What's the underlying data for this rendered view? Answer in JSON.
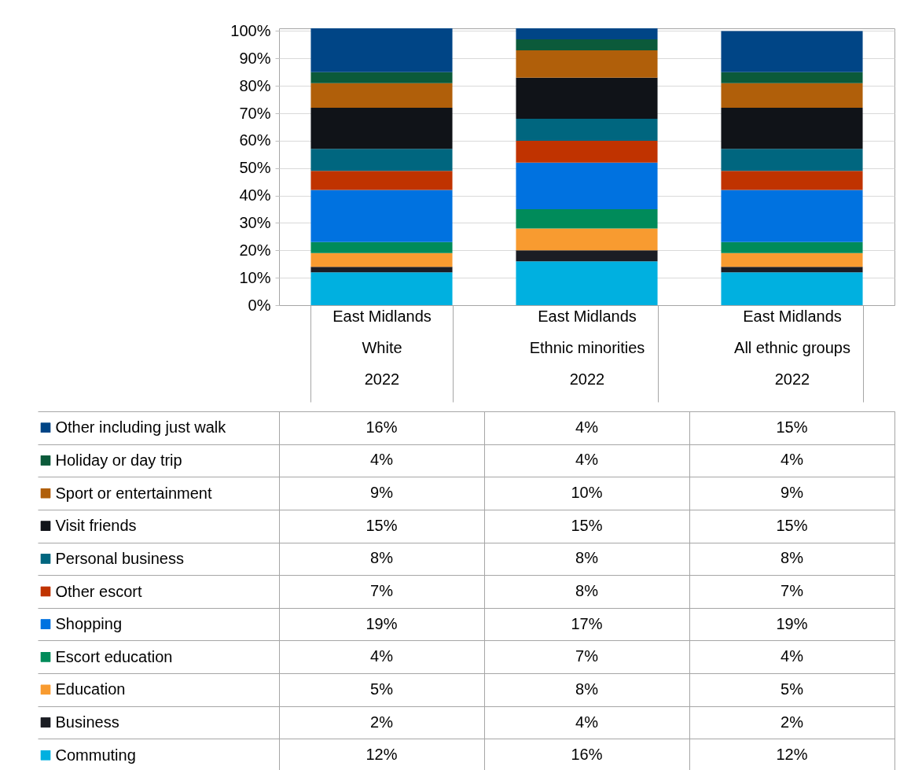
{
  "chart_data": {
    "type": "bar",
    "stacked": true,
    "categories": [
      "East Midlands\nWhite\n2022",
      "East Midlands\nEthnic minorities\n2022",
      "East Midlands\nAll ethnic groups\n2022"
    ],
    "ylim": [
      0,
      101
    ],
    "yticks": [
      {
        "value": 0,
        "label": "0%"
      },
      {
        "value": 10,
        "label": "10%"
      },
      {
        "value": 20,
        "label": "20%"
      },
      {
        "value": 30,
        "label": "30%"
      },
      {
        "value": 40,
        "label": "40%"
      },
      {
        "value": 50,
        "label": "50%"
      },
      {
        "value": 60,
        "label": "60%"
      },
      {
        "value": 70,
        "label": "70%"
      },
      {
        "value": 80,
        "label": "80%"
      },
      {
        "value": 90,
        "label": "90%"
      },
      {
        "value": 100,
        "label": "100%"
      }
    ],
    "grid": "y",
    "legend": "bottom",
    "series": [
      {
        "name": "Commuting",
        "color": "#00b0e0",
        "values": [
          12,
          16,
          12
        ],
        "value_labels": [
          "12%",
          "16%",
          "12%"
        ]
      },
      {
        "name": "Business",
        "color": "#1b1d24",
        "values": [
          2,
          4,
          2
        ],
        "value_labels": [
          "2%",
          "4%",
          "2%"
        ]
      },
      {
        "name": "Education",
        "color": "#f89b30",
        "values": [
          5,
          8,
          5
        ],
        "value_labels": [
          "5%",
          "8%",
          "5%"
        ]
      },
      {
        "name": "Escort education",
        "color": "#008b5a",
        "values": [
          4,
          7,
          4
        ],
        "value_labels": [
          "4%",
          "7%",
          "4%"
        ]
      },
      {
        "name": "Shopping",
        "color": "#0072e0",
        "values": [
          19,
          17,
          19
        ],
        "value_labels": [
          "19%",
          "17%",
          "19%"
        ]
      },
      {
        "name": "Other escort",
        "color": "#c03300",
        "values": [
          7,
          8,
          7
        ],
        "value_labels": [
          "7%",
          "8%",
          "7%"
        ]
      },
      {
        "name": "Personal business",
        "color": "#00667f",
        "values": [
          8,
          8,
          8
        ],
        "value_labels": [
          "8%",
          "8%",
          "8%"
        ]
      },
      {
        "name": "Visit friends",
        "color": "#101318",
        "values": [
          15,
          15,
          15
        ],
        "value_labels": [
          "15%",
          "15%",
          "15%"
        ]
      },
      {
        "name": "Sport or entertainment",
        "color": "#b05f0a",
        "values": [
          9,
          10,
          9
        ],
        "value_labels": [
          "9%",
          "10%",
          "9%"
        ]
      },
      {
        "name": "Holiday or day trip",
        "color": "#0b5a3a",
        "values": [
          4,
          4,
          4
        ],
        "value_labels": [
          "4%",
          "4%",
          "4%"
        ]
      },
      {
        "name": "Other including just walk",
        "color": "#004586",
        "values": [
          16,
          4,
          15
        ],
        "value_labels": [
          "16%",
          "4%",
          "15%"
        ]
      }
    ]
  }
}
